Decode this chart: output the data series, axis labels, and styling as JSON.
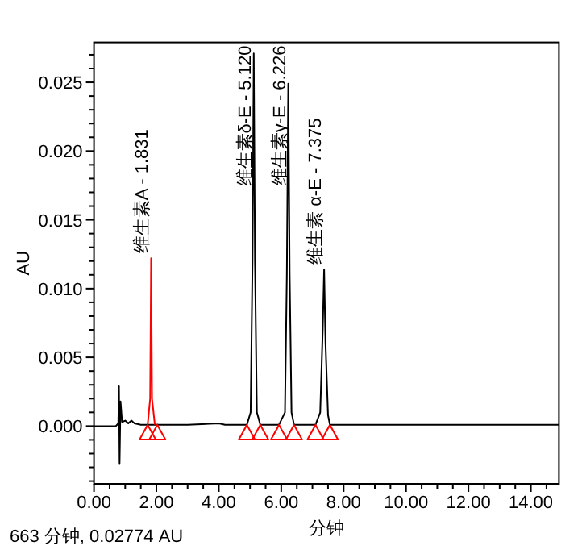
{
  "chart_data": {
    "type": "line",
    "xlabel": "分钟",
    "ylabel": "AU",
    "xlim": [
      0,
      14.9
    ],
    "ylim": [
      -0.0042,
      0.0279
    ],
    "xticks": [
      {
        "value": 0,
        "label": "0.00"
      },
      {
        "value": 0.5,
        "label": null
      },
      {
        "value": 1,
        "label": null
      },
      {
        "value": 1.5,
        "label": null
      },
      {
        "value": 2,
        "label": "2.00"
      },
      {
        "value": 2.5,
        "label": null
      },
      {
        "value": 3,
        "label": null
      },
      {
        "value": 3.5,
        "label": null
      },
      {
        "value": 4,
        "label": "4.00"
      },
      {
        "value": 4.5,
        "label": null
      },
      {
        "value": 5,
        "label": null
      },
      {
        "value": 5.5,
        "label": null
      },
      {
        "value": 6,
        "label": "6.00"
      },
      {
        "value": 6.5,
        "label": null
      },
      {
        "value": 7,
        "label": null
      },
      {
        "value": 7.5,
        "label": null
      },
      {
        "value": 8,
        "label": "8.00"
      },
      {
        "value": 8.5,
        "label": null
      },
      {
        "value": 9,
        "label": null
      },
      {
        "value": 9.5,
        "label": null
      },
      {
        "value": 10,
        "label": "10.00"
      },
      {
        "value": 10.5,
        "label": null
      },
      {
        "value": 11,
        "label": null
      },
      {
        "value": 11.5,
        "label": null
      },
      {
        "value": 12,
        "label": "12.00"
      },
      {
        "value": 12.5,
        "label": null
      },
      {
        "value": 13,
        "label": null
      },
      {
        "value": 13.5,
        "label": null
      },
      {
        "value": 14,
        "label": "14.00"
      },
      {
        "value": 14.5,
        "label": null
      }
    ],
    "yticks": [
      {
        "value": -0.004,
        "label": null
      },
      {
        "value": -0.003,
        "label": null
      },
      {
        "value": -0.002,
        "label": null
      },
      {
        "value": -0.001,
        "label": null
      },
      {
        "value": 0,
        "label": "0.000"
      },
      {
        "value": 0.001,
        "label": null
      },
      {
        "value": 0.002,
        "label": null
      },
      {
        "value": 0.003,
        "label": null
      },
      {
        "value": 0.004,
        "label": null
      },
      {
        "value": 0.005,
        "label": "0.005"
      },
      {
        "value": 0.006,
        "label": null
      },
      {
        "value": 0.007,
        "label": null
      },
      {
        "value": 0.008,
        "label": null
      },
      {
        "value": 0.009,
        "label": null
      },
      {
        "value": 0.01,
        "label": "0.010"
      },
      {
        "value": 0.011,
        "label": null
      },
      {
        "value": 0.012,
        "label": null
      },
      {
        "value": 0.013,
        "label": null
      },
      {
        "value": 0.014,
        "label": null
      },
      {
        "value": 0.015,
        "label": "0.015"
      },
      {
        "value": 0.016,
        "label": null
      },
      {
        "value": 0.017,
        "label": null
      },
      {
        "value": 0.018,
        "label": null
      },
      {
        "value": 0.019,
        "label": null
      },
      {
        "value": 0.02,
        "label": "0.020"
      },
      {
        "value": 0.021,
        "label": null
      },
      {
        "value": 0.022,
        "label": null
      },
      {
        "value": 0.023,
        "label": null
      },
      {
        "value": 0.024,
        "label": null
      },
      {
        "value": 0.025,
        "label": "0.025"
      },
      {
        "value": 0.026,
        "label": null
      },
      {
        "value": 0.027,
        "label": null
      }
    ],
    "grid": false,
    "series": [
      {
        "color": "#000000",
        "x": [
          0,
          0.7,
          0.78,
          0.8,
          0.82,
          0.85,
          0.9,
          1.0,
          1.1,
          1.2,
          1.3,
          1.5,
          1.7,
          2.1,
          3.0,
          4.0,
          4.2,
          4.9,
          5.02,
          5.08,
          5.12,
          5.16,
          5.22,
          5.33,
          5.93,
          6.12,
          6.18,
          6.226,
          6.27,
          6.33,
          6.41,
          7.1,
          7.25,
          7.33,
          7.375,
          7.42,
          7.5,
          7.56,
          10,
          14.9
        ],
        "values": [
          0,
          0,
          0.0002,
          0.0029,
          -0.0027,
          0.0018,
          0.0003,
          0.0004,
          0.0002,
          0.0004,
          0.0002,
          0.0001,
          0.0001,
          0.0001,
          0.0001,
          0.0002,
          0.0001,
          0.0001,
          0.001,
          0.012,
          0.0271,
          0.012,
          0.001,
          0.0001,
          0.0001,
          0.001,
          0.011,
          0.0249,
          0.011,
          0.001,
          0.0001,
          0.0001,
          0.001,
          0.007,
          0.0114,
          0.006,
          0.0008,
          0.0001,
          0.0001,
          0.0001
        ]
      },
      {
        "color": "#ff0000",
        "x": [
          1.72,
          1.8,
          1.831,
          1.86,
          1.95
        ],
        "values": [
          0.0001,
          0.002,
          0.0122,
          0.002,
          0.0001
        ]
      },
      {
        "type": "scatter",
        "marker": "triangle",
        "color": "#ff0000",
        "x": [
          1.72,
          2.03,
          4.9,
          5.33,
          5.93,
          6.41,
          7.1,
          7.56
        ],
        "values": [
          -0.0005,
          -0.0005,
          -0.0005,
          -0.0005,
          -0.0005,
          -0.0005,
          -0.0005,
          -0.0005
        ]
      }
    ],
    "annotations": [
      {
        "text": "维生素A - 1.831",
        "x": 1.831,
        "y": 0.0122
      },
      {
        "text": "维生素δ-E - 5.120",
        "x": 5.12,
        "y": 0.0271
      },
      {
        "text": "维生素γ-E - 6.226",
        "x": 6.226,
        "y": 0.0249
      },
      {
        "text": "维生素 α-E - 7.375",
        "x": 7.375,
        "y": 0.0114
      },
      "663 分钟, 0.02774 AU"
    ]
  }
}
